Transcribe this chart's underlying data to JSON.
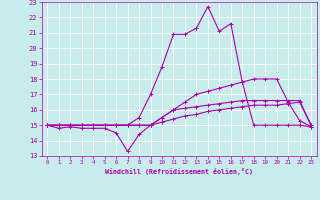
{
  "xlabel": "Windchill (Refroidissement éolien,°C)",
  "xlim": [
    -0.5,
    23.5
  ],
  "ylim": [
    13,
    23
  ],
  "xticks": [
    0,
    1,
    2,
    3,
    4,
    5,
    6,
    7,
    8,
    9,
    10,
    11,
    12,
    13,
    14,
    15,
    16,
    17,
    18,
    19,
    20,
    21,
    22,
    23
  ],
  "yticks": [
    13,
    14,
    15,
    16,
    17,
    18,
    19,
    20,
    21,
    22,
    23
  ],
  "bg_color": "#c8ecec",
  "line_color": "#aa00aa",
  "grid_color": "#ffffff",
  "series": [
    {
      "x": [
        0,
        1,
        2,
        3,
        4,
        5,
        6,
        7,
        8,
        9,
        10,
        11,
        12,
        13,
        14,
        15,
        16,
        17,
        18,
        19,
        20,
        21,
        22,
        23
      ],
      "y": [
        15,
        15,
        15,
        15,
        15,
        15,
        15,
        15,
        15.5,
        17.0,
        18.8,
        20.9,
        20.9,
        21.3,
        22.7,
        21.1,
        21.6,
        17.8,
        15.0,
        15.0,
        15.0,
        15.0,
        15.0,
        14.9
      ]
    },
    {
      "x": [
        0,
        1,
        2,
        3,
        4,
        5,
        6,
        7,
        8,
        9,
        10,
        11,
        12,
        13,
        14,
        15,
        16,
        17,
        18,
        19,
        20,
        21,
        22,
        23
      ],
      "y": [
        15,
        15,
        15,
        15,
        15,
        15,
        15,
        15,
        15,
        15,
        15.5,
        16.0,
        16.5,
        17.0,
        17.2,
        17.4,
        17.6,
        17.8,
        18.0,
        18.0,
        18.0,
        16.5,
        15.3,
        14.9
      ]
    },
    {
      "x": [
        0,
        1,
        2,
        3,
        4,
        5,
        6,
        7,
        8,
        9,
        10,
        11,
        12,
        13,
        14,
        15,
        16,
        17,
        18,
        19,
        20,
        21,
        22,
        23
      ],
      "y": [
        15,
        14.8,
        14.9,
        14.8,
        14.8,
        14.8,
        14.5,
        13.3,
        14.4,
        15.0,
        15.5,
        16.0,
        16.1,
        16.2,
        16.3,
        16.4,
        16.5,
        16.6,
        16.6,
        16.6,
        16.6,
        16.6,
        16.6,
        15.0
      ]
    },
    {
      "x": [
        0,
        1,
        2,
        3,
        4,
        5,
        6,
        7,
        8,
        9,
        10,
        11,
        12,
        13,
        14,
        15,
        16,
        17,
        18,
        19,
        20,
        21,
        22,
        23
      ],
      "y": [
        15,
        15,
        15,
        15,
        15,
        15,
        15,
        15,
        15,
        15,
        15.2,
        15.4,
        15.6,
        15.7,
        15.9,
        16.0,
        16.1,
        16.2,
        16.3,
        16.3,
        16.3,
        16.4,
        16.5,
        15.0
      ]
    }
  ]
}
